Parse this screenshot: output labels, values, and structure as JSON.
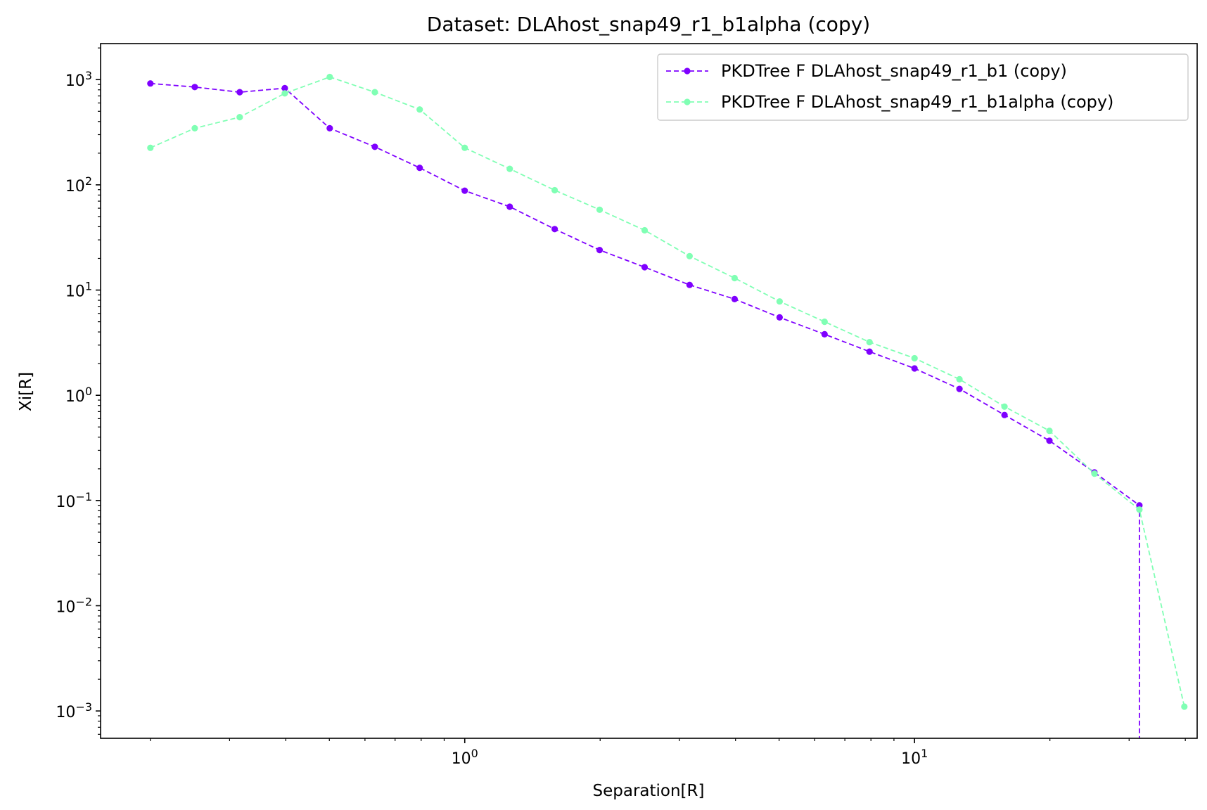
{
  "chart_data": {
    "type": "line",
    "title": "Dataset: DLAhost_snap49_r1_b1alpha (copy)",
    "xlabel": "Separation[R]",
    "ylabel": "Xi[R]",
    "xscale": "log",
    "yscale": "log",
    "xlim": [
      0.155,
      42.5
    ],
    "ylim": [
      0.00055,
      2200
    ],
    "x_ticks": [
      {
        "value": 1,
        "base": "10",
        "exp": "0"
      },
      {
        "value": 10,
        "base": "10",
        "exp": "1"
      }
    ],
    "y_ticks": [
      {
        "value": 1000,
        "base": "10",
        "exp": "3"
      },
      {
        "value": 100,
        "base": "10",
        "exp": "2"
      },
      {
        "value": 10,
        "base": "10",
        "exp": "1"
      },
      {
        "value": 1,
        "base": "10",
        "exp": "0"
      },
      {
        "value": 0.1,
        "base": "10",
        "exp": "−1"
      },
      {
        "value": 0.01,
        "base": "10",
        "exp": "−2"
      },
      {
        "value": 0.001,
        "base": "10",
        "exp": "−3"
      }
    ],
    "grid": false,
    "legend_position": "top-right",
    "series": [
      {
        "name": "PKDTree F DLAhost_snap49_r1_b1 (copy)",
        "color": "#7f00ff",
        "linestyle": "dashed",
        "marker": "circle",
        "x": [
          0.2,
          0.251,
          0.316,
          0.398,
          0.501,
          0.631,
          0.794,
          1.0,
          1.259,
          1.585,
          1.995,
          2.512,
          3.162,
          3.981,
          5.012,
          6.31,
          7.943,
          10.0,
          12.59,
          15.85,
          19.95,
          25.12,
          31.62
        ],
        "y": [
          920,
          850,
          760,
          830,
          345,
          230,
          145,
          88,
          62,
          38,
          24,
          16.5,
          11.2,
          8.2,
          5.5,
          3.8,
          2.6,
          1.8,
          1.15,
          0.65,
          0.37,
          0.185,
          0.09
        ],
        "drop_after_last": true
      },
      {
        "name": "PKDTree F DLAhost_snap49_r1_b1alpha (copy)",
        "color": "#80ffb4",
        "linestyle": "dashed",
        "marker": "circle",
        "x": [
          0.2,
          0.251,
          0.316,
          0.398,
          0.501,
          0.631,
          0.794,
          1.0,
          1.259,
          1.585,
          1.995,
          2.512,
          3.162,
          3.981,
          5.012,
          6.31,
          7.943,
          10.0,
          12.59,
          15.85,
          19.95,
          25.12,
          31.62,
          39.81
        ],
        "y": [
          225,
          345,
          440,
          740,
          1060,
          760,
          520,
          225,
          142,
          89,
          58,
          37,
          21,
          13,
          7.8,
          5.0,
          3.2,
          2.25,
          1.42,
          0.78,
          0.46,
          0.18,
          0.082,
          0.0011
        ]
      }
    ]
  }
}
